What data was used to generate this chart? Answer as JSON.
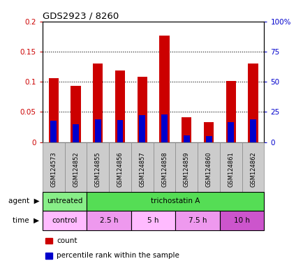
{
  "title": "GDS2923 / 8260",
  "samples": [
    "GSM124573",
    "GSM124852",
    "GSM124855",
    "GSM124856",
    "GSM124857",
    "GSM124858",
    "GSM124859",
    "GSM124860",
    "GSM124861",
    "GSM124862"
  ],
  "count_values": [
    0.106,
    0.093,
    0.13,
    0.119,
    0.108,
    0.176,
    0.041,
    0.033,
    0.101,
    0.13
  ],
  "percentile_values": [
    0.035,
    0.03,
    0.038,
    0.037,
    0.045,
    0.046,
    0.011,
    0.01,
    0.033,
    0.038
  ],
  "count_color": "#cc0000",
  "percentile_color": "#0000cc",
  "ylim_left": [
    0,
    0.2
  ],
  "ylim_right": [
    0,
    100
  ],
  "yticks_left": [
    0,
    0.05,
    0.1,
    0.15,
    0.2
  ],
  "ytick_labels_left": [
    "0",
    "0.05",
    "0.1",
    "0.15",
    "0.2"
  ],
  "yticks_right": [
    0,
    25,
    50,
    75,
    100
  ],
  "ytick_labels_right": [
    "0",
    "25",
    "50",
    "75",
    "100%"
  ],
  "agent_row": [
    {
      "label": "untreated",
      "start": 0,
      "end": 2,
      "color": "#88ee88"
    },
    {
      "label": "trichostatin A",
      "start": 2,
      "end": 10,
      "color": "#55dd55"
    }
  ],
  "time_row": [
    {
      "label": "control",
      "start": 0,
      "end": 2,
      "color": "#ffbbff"
    },
    {
      "label": "2.5 h",
      "start": 2,
      "end": 4,
      "color": "#ee99ee"
    },
    {
      "label": "5 h",
      "start": 4,
      "end": 6,
      "color": "#ffbbff"
    },
    {
      "label": "7.5 h",
      "start": 6,
      "end": 8,
      "color": "#ee99ee"
    },
    {
      "label": "10 h",
      "start": 8,
      "end": 10,
      "color": "#cc55cc"
    }
  ],
  "bar_width": 0.45,
  "percentile_bar_width": 0.28,
  "dotted_grid_values": [
    0.05,
    0.1,
    0.15
  ],
  "sample_box_color": "#cccccc",
  "legend_items": [
    {
      "label": "count",
      "color": "#cc0000"
    },
    {
      "label": "percentile rank within the sample",
      "color": "#0000cc"
    }
  ],
  "agent_label": "agent",
  "time_label": "time"
}
